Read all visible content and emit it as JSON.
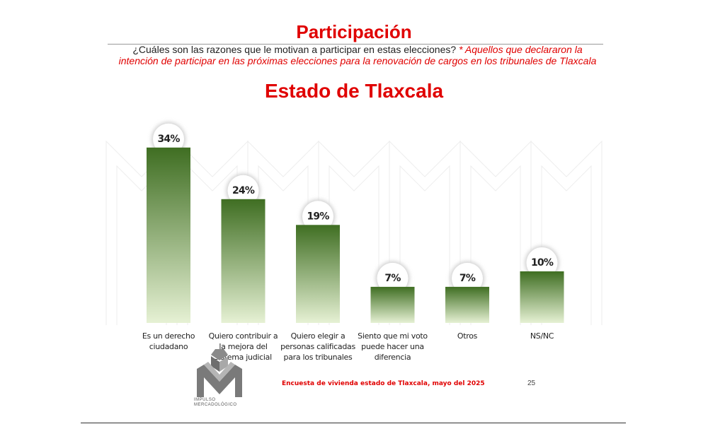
{
  "title": "Participación",
  "question": "¿Cuáles son las razones que le motivan a participar en estas elecciones?",
  "note": "* Aquellos que declararon la intención de participar en las próximas elecciones para la renovación de cargos en los tribunales de Tlaxcala",
  "subtitle": "Estado de Tlaxcala",
  "footer": "Encuesta de vivienda estado de Tlaxcala, mayo del 2025",
  "page_number": "25",
  "logo_text": {
    "line1": "IMPULSO",
    "line2": "MERCADOLÓGICO"
  },
  "colors": {
    "accent_red": "#e00000",
    "bar_top": "#3f6e22",
    "bar_bottom": "#e6f1d4"
  },
  "chart_data": {
    "type": "bar",
    "categories": [
      "Es un derecho ciudadano",
      "Quiero contribuir a la mejora del sistema judicial",
      "Quiero elegir a personas calificadas para los tribunales",
      "Siento que mi voto puede hacer una diferencia",
      "Otros",
      "NS/NC"
    ],
    "values": [
      34,
      24,
      19,
      7,
      7,
      10
    ],
    "value_labels": [
      "34%",
      "24%",
      "19%",
      "7%",
      "7%",
      "10%"
    ],
    "ylim": [
      0,
      40
    ],
    "grid": false,
    "legend": "none"
  }
}
